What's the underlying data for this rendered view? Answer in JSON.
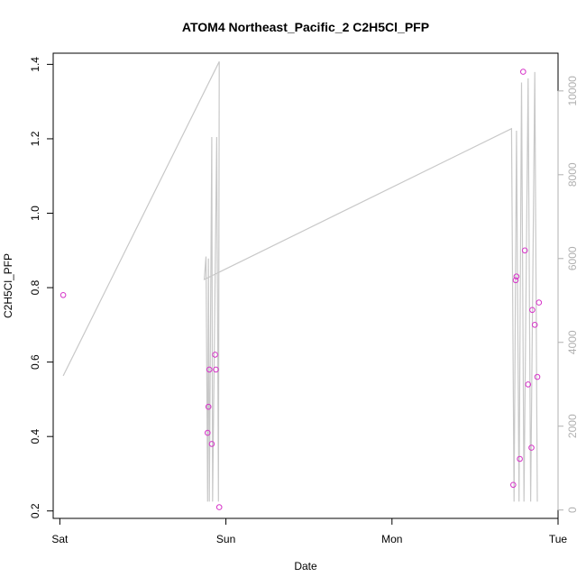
{
  "chart_data": {
    "type": "scatter",
    "title": "ATOM4 Northeast_Pacific_2 C2H5Cl_PFP",
    "xlabel": "Date",
    "ylabel": "C2H5Cl_PFP",
    "x_ticks": [
      {
        "label": "Sat",
        "day": 0
      },
      {
        "label": "Sun",
        "day": 1
      },
      {
        "label": "Mon",
        "day": 2
      },
      {
        "label": "Tue",
        "day": 3
      }
    ],
    "xlim_days": [
      -0.04,
      3.0
    ],
    "ylim": [
      0.18,
      1.43
    ],
    "y_ticks": [
      0.2,
      0.4,
      0.6,
      0.8,
      1.0,
      1.2,
      1.4
    ],
    "y2lim": [
      -200,
      10900
    ],
    "y2_ticks": [
      0,
      2000,
      4000,
      6000,
      8000,
      10000
    ],
    "colors": {
      "points": "#d633c8",
      "line": "#c8c8c8",
      "axis": "#000000",
      "right_axis": "#b0b0b0"
    },
    "series": [
      {
        "kind": "points",
        "axis": "left",
        "points": [
          [
            0.02,
            0.78
          ],
          [
            0.89,
            0.41
          ],
          [
            0.895,
            0.48
          ],
          [
            0.9,
            0.58
          ],
          [
            0.915,
            0.38
          ],
          [
            0.935,
            0.62
          ],
          [
            0.94,
            0.58
          ],
          [
            0.96,
            0.21
          ],
          [
            2.73,
            0.27
          ],
          [
            2.745,
            0.82
          ],
          [
            2.75,
            0.83
          ],
          [
            2.77,
            0.34
          ],
          [
            2.79,
            1.38
          ],
          [
            2.8,
            0.9
          ],
          [
            2.82,
            0.54
          ],
          [
            2.84,
            0.37
          ],
          [
            2.845,
            0.74
          ],
          [
            2.86,
            0.7
          ],
          [
            2.875,
            0.56
          ],
          [
            2.885,
            0.76
          ]
        ]
      },
      {
        "kind": "line",
        "axis": "right",
        "points": [
          [
            0.02,
            3200
          ],
          [
            0.96,
            10700
          ],
          [
            0.955,
            200
          ],
          [
            0.945,
            8900
          ],
          [
            0.92,
            200
          ],
          [
            0.915,
            8900
          ],
          [
            0.9,
            200
          ],
          [
            0.895,
            6000
          ],
          [
            0.89,
            200
          ],
          [
            0.88,
            6050
          ],
          [
            0.87,
            5500
          ],
          [
            2.72,
            9100
          ],
          [
            2.735,
            200
          ],
          [
            2.75,
            9050
          ],
          [
            2.765,
            200
          ],
          [
            2.78,
            10200
          ],
          [
            2.795,
            200
          ],
          [
            2.82,
            10300
          ],
          [
            2.835,
            200
          ],
          [
            2.86,
            10450
          ],
          [
            2.875,
            200
          ]
        ]
      }
    ]
  }
}
